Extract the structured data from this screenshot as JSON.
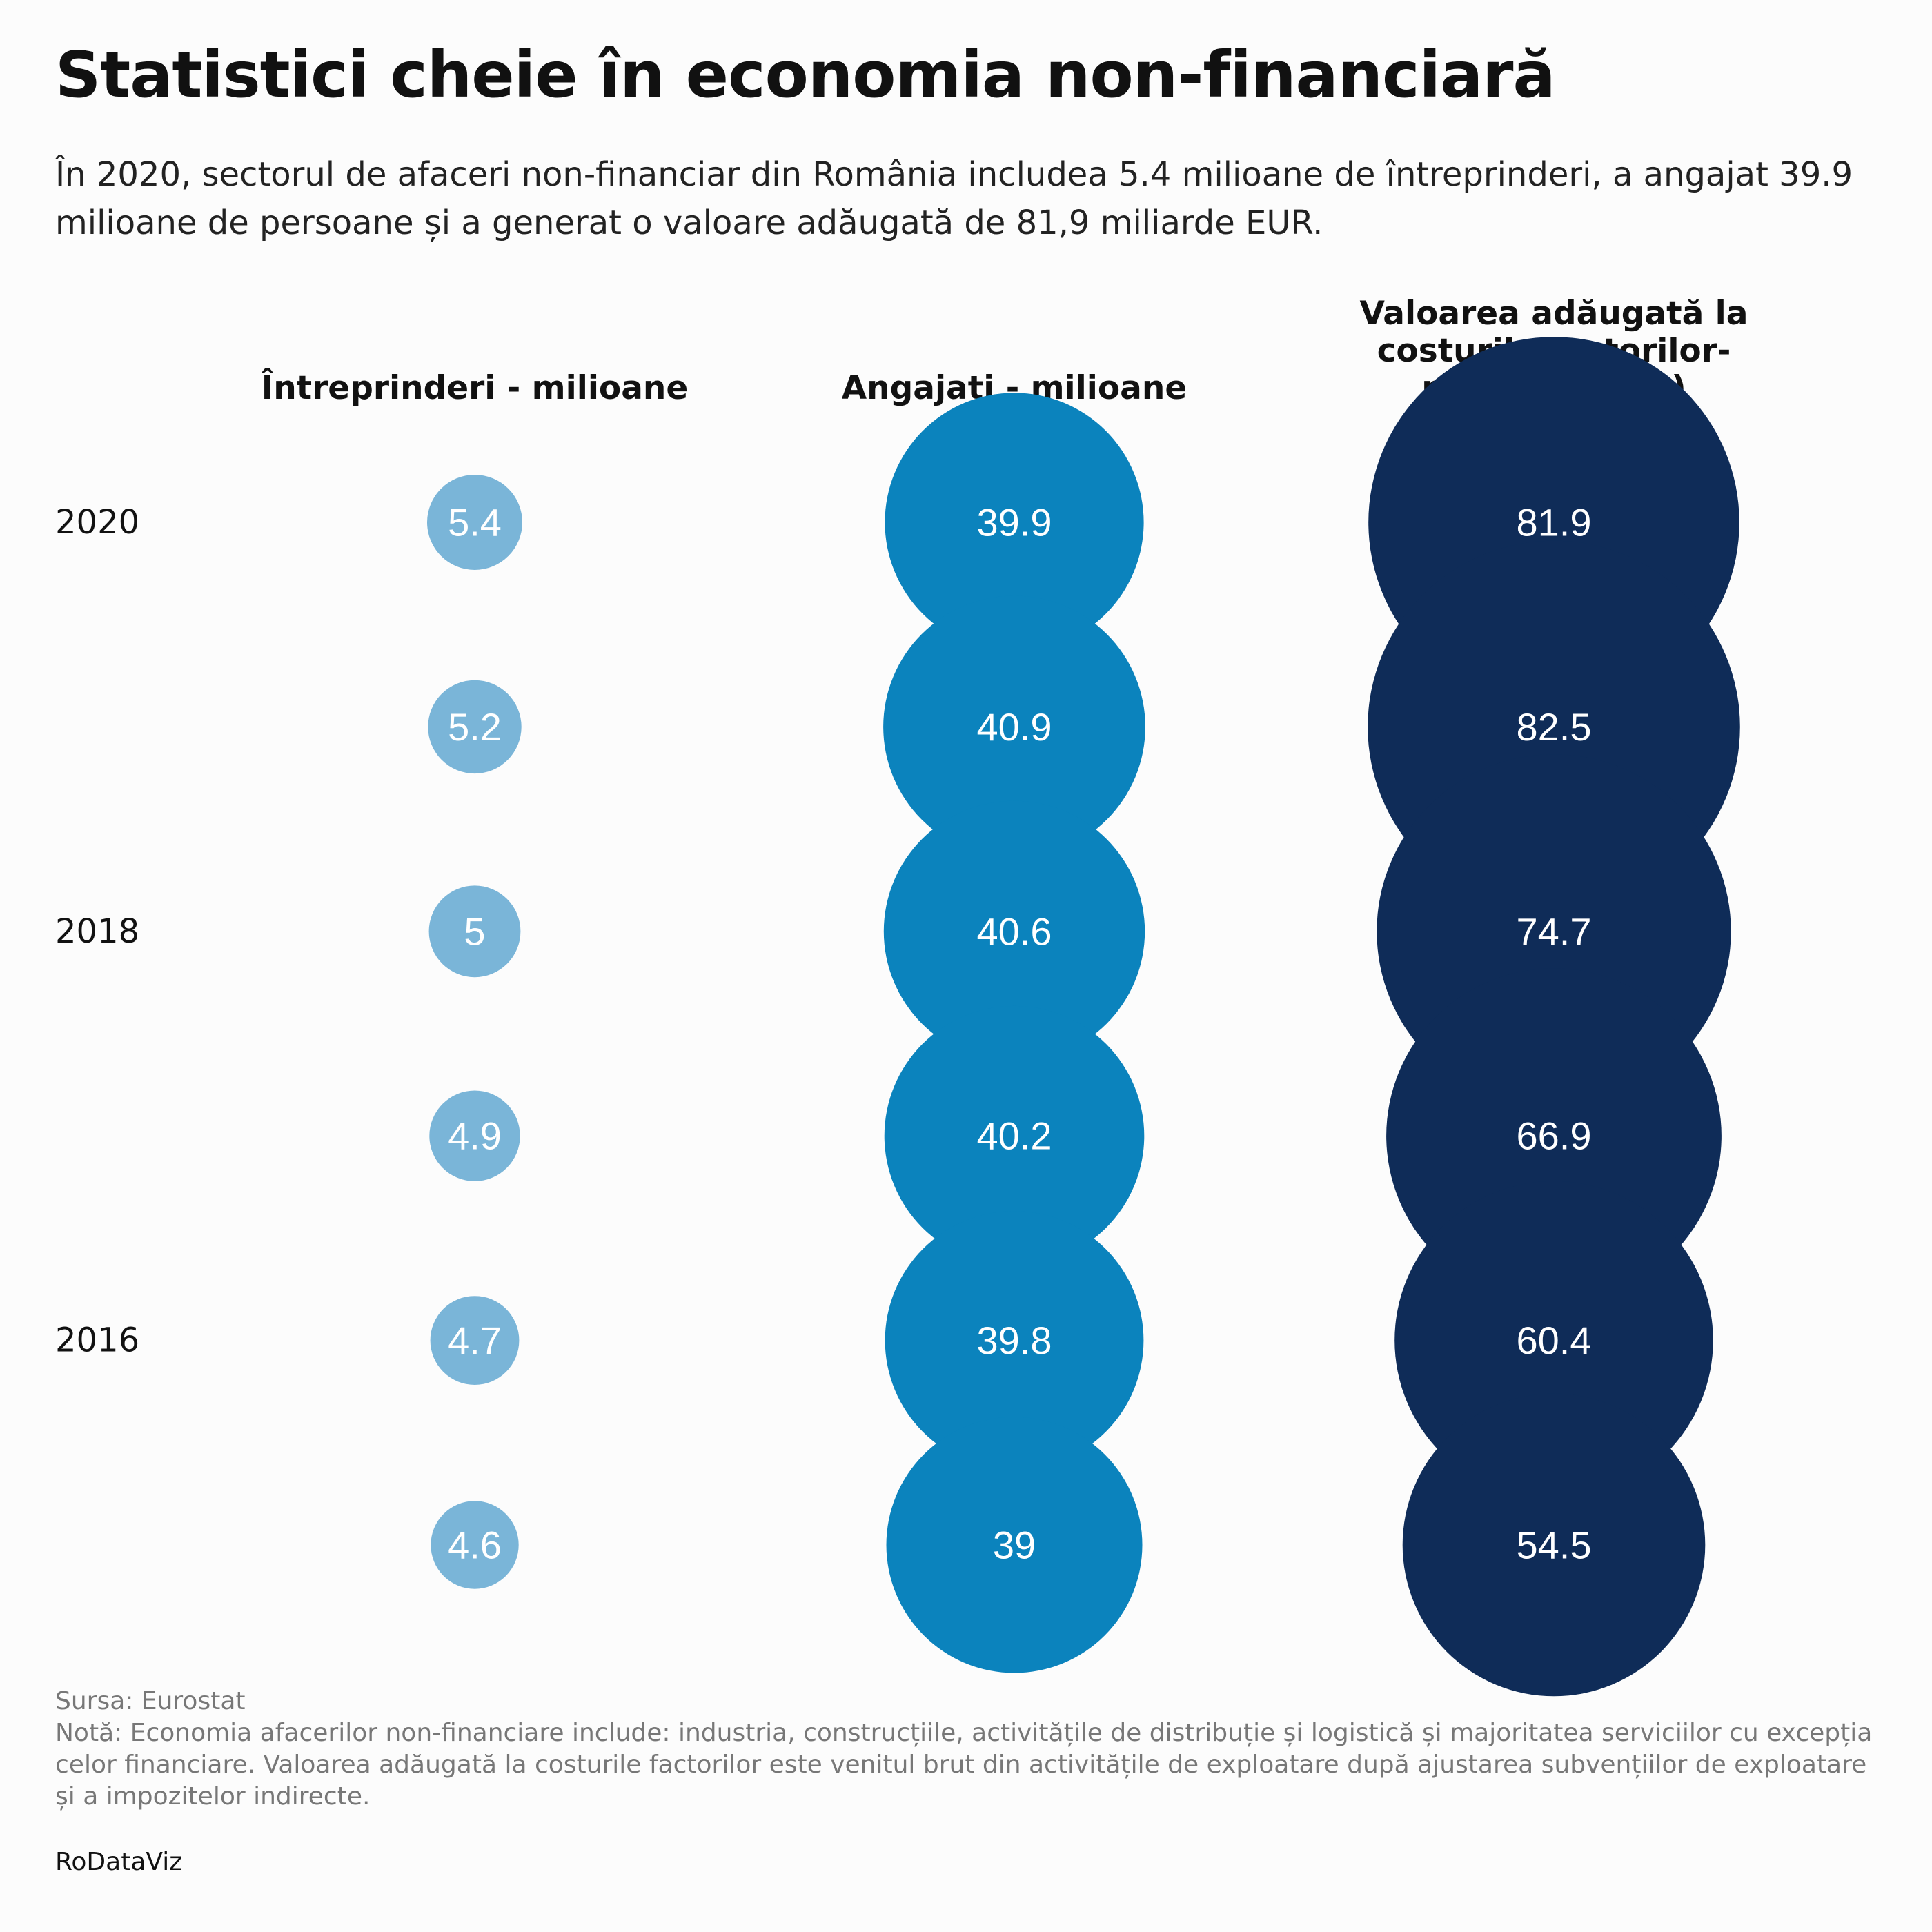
{
  "title": "Statistici cheie în economia non-financiară",
  "subtitle": "În 2020, sectorul de afaceri non-financiar din România includea 5.4 milioane de întreprinderi, a angajat 39.9 milioane de persoane și a generat o valoare adăugată de 81,9 miliarde EUR.",
  "source": "Sursa: Eurostat",
  "note": "Notă: Economia afacerilor non-financiare include: industria, construcțiile, activitățile de distribuție și logistică și majoritatea serviciilor cu excepția celor financiare. Valoarea adăugată la costurile factorilor este venitul brut din activitățile de exploatare după ajustarea subvențiilor de exploatare și a impozitelor indirecte.",
  "brand": "RoDataViz",
  "chart_data": {
    "type": "bubble-table",
    "row_labels": [
      "2020",
      "",
      "2018",
      "",
      "2016",
      ""
    ],
    "columns": [
      {
        "name": "Întreprinderi - milioane",
        "header_lines": [
          "Întreprinderi - milioane"
        ],
        "color": "#7ab5d8",
        "values": [
          5.4,
          5.2,
          5,
          4.9,
          4.7,
          4.6
        ]
      },
      {
        "name": "Angajați - milioane",
        "header_lines": [
          "Angajați - milioane"
        ],
        "color": "#0b83bd",
        "values": [
          39.9,
          40.9,
          40.6,
          40.2,
          39.8,
          39
        ]
      },
      {
        "name": "Valoarea adăugată la costurile factorilor-miliarde (EUR)",
        "header_lines": [
          "Valoarea adăugată la",
          "costurile factorilor-",
          "miliarde (EUR)"
        ],
        "color": "#0f2c58",
        "values": [
          81.9,
          82.5,
          74.7,
          66.9,
          60.4,
          54.5
        ]
      }
    ]
  }
}
